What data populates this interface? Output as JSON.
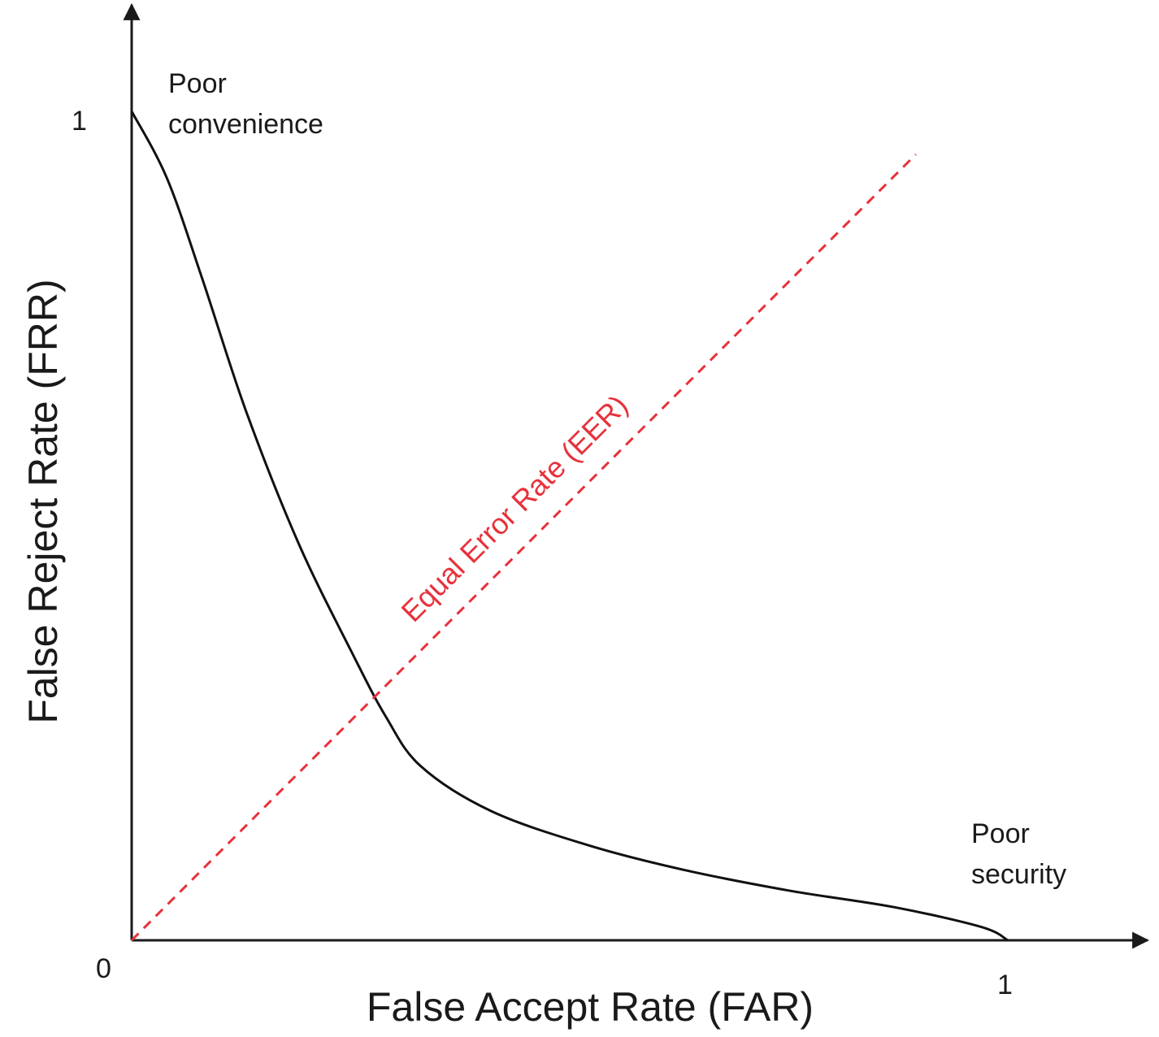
{
  "chart_data": {
    "type": "line",
    "xlabel": "False Accept Rate (FAR)",
    "ylabel": "False Reject Rate (FRR)",
    "xlim": [
      0,
      1
    ],
    "ylim": [
      0,
      1
    ],
    "grid": false,
    "ticks": {
      "origin": "0",
      "x_end": "1",
      "y_end": "1"
    },
    "series": [
      {
        "style": "solid",
        "color": "#111111",
        "x": [
          0.0,
          0.04,
          0.08,
          0.13,
          0.19,
          0.25,
          0.29,
          0.33,
          0.41,
          0.52,
          0.63,
          0.75,
          0.87,
          0.97,
          1.0
        ],
        "y": [
          1.0,
          0.92,
          0.8,
          0.64,
          0.48,
          0.35,
          0.27,
          0.21,
          0.156,
          0.115,
          0.085,
          0.06,
          0.04,
          0.016,
          0.0
        ]
      },
      {
        "name": "Equal Error Rate (EER)",
        "style": "dashed",
        "color": "#e8313b",
        "x": [
          0.0,
          0.895
        ],
        "y": [
          0.0,
          0.948
        ]
      }
    ],
    "annotations": {
      "poor_convenience": [
        "Poor",
        "convenience"
      ],
      "poor_security": [
        "Poor",
        "security"
      ]
    }
  }
}
